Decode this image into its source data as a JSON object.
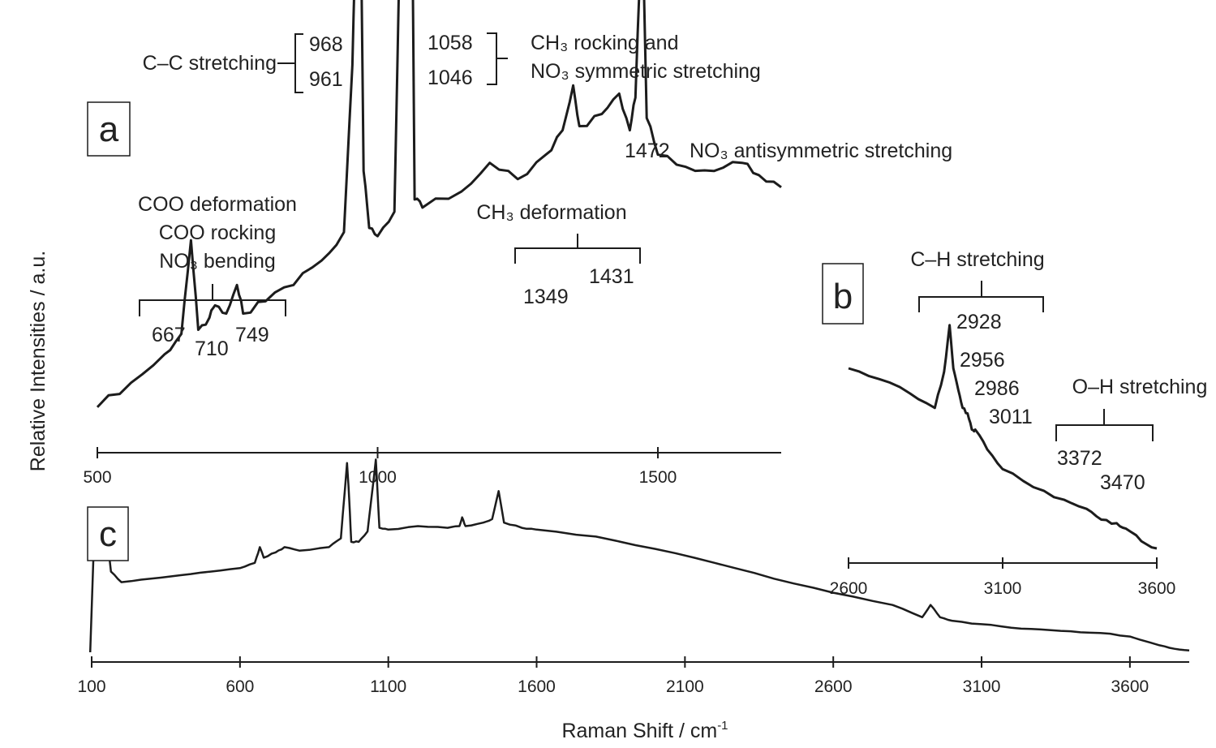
{
  "chart_data": [
    {
      "panel": "a",
      "type": "line",
      "xlim": [
        500,
        1720
      ],
      "xticks": [
        500,
        1000,
        1500
      ],
      "peaks": [
        {
          "x": 667,
          "label": "667"
        },
        {
          "x": 710,
          "label": "710"
        },
        {
          "x": 749,
          "label": "749"
        },
        {
          "x": 961,
          "label": "961"
        },
        {
          "x": 968,
          "label": "968"
        },
        {
          "x": 1046,
          "label": "1046"
        },
        {
          "x": 1058,
          "label": "1058"
        },
        {
          "x": 1349,
          "label": "1349"
        },
        {
          "x": 1431,
          "label": "1431"
        },
        {
          "x": 1472,
          "label": "1472"
        }
      ],
      "annotations": {
        "cc": "C–C stretching",
        "ch3_rock": "CH₃ rocking and",
        "no3_sym": "NO₃ symmetric stretching",
        "no3_anti": "NO₃ antisymmetric stretching",
        "ch3_def": "CH₃ deformation",
        "coo_def": "COO deformation",
        "coo_rock": "COO rocking",
        "no3_bend": "NO₃ bending"
      },
      "series": [
        {
          "x": [
            500,
            560,
            620,
            650,
            667,
            680,
            700,
            710,
            730,
            749,
            760,
            800,
            850,
            900,
            940,
            955,
            961,
            968,
            975,
            985,
            1000,
            1030,
            1046,
            1050,
            1058,
            1066,
            1080,
            1150,
            1200,
            1250,
            1300,
            1330,
            1349,
            1360,
            1400,
            1431,
            1450,
            1460,
            1472,
            1480,
            1500,
            1550,
            1600,
            1650,
            1680,
            1720
          ],
          "y": [
            0.04,
            0.1,
            0.17,
            0.22,
            0.45,
            0.23,
            0.26,
            0.29,
            0.27,
            0.34,
            0.27,
            0.3,
            0.34,
            0.4,
            0.47,
            0.88,
            1.22,
            1.48,
            0.62,
            0.48,
            0.46,
            0.52,
            1.63,
            1.4,
            1.86,
            0.55,
            0.53,
            0.57,
            0.64,
            0.6,
            0.66,
            0.72,
            0.83,
            0.73,
            0.76,
            0.81,
            0.72,
            0.8,
            1.26,
            0.75,
            0.66,
            0.63,
            0.62,
            0.64,
            0.61,
            0.58
          ]
        }
      ]
    },
    {
      "panel": "b",
      "type": "line",
      "xlim": [
        2600,
        3600
      ],
      "xticks": [
        2600,
        3100,
        3600
      ],
      "peaks": [
        {
          "x": 2928,
          "label": "2928"
        },
        {
          "x": 2956,
          "label": "2956"
        },
        {
          "x": 2986,
          "label": "2986"
        },
        {
          "x": 3011,
          "label": "3011"
        },
        {
          "x": 3372,
          "label": "3372"
        },
        {
          "x": 3470,
          "label": "3470"
        }
      ],
      "annotations": {
        "ch": "C–H stretching",
        "oh": "O–H stretching"
      },
      "series": [
        {
          "x": [
            2600,
            2700,
            2800,
            2880,
            2910,
            2928,
            2940,
            2956,
            2970,
            2986,
            3000,
            3011,
            3050,
            3100,
            3200,
            3300,
            3372,
            3420,
            3470,
            3500,
            3550,
            3600
          ],
          "y": [
            1.0,
            0.94,
            0.86,
            0.78,
            0.98,
            1.24,
            1.0,
            0.88,
            0.78,
            0.75,
            0.66,
            0.66,
            0.55,
            0.44,
            0.34,
            0.27,
            0.22,
            0.16,
            0.14,
            0.11,
            0.04,
            0.0
          ]
        }
      ]
    },
    {
      "panel": "c",
      "type": "line",
      "xlim": [
        100,
        3800
      ],
      "xticks": [
        100,
        600,
        1100,
        1600,
        2100,
        2600,
        3100,
        3600
      ],
      "xlabel": "Raman Shift / cm",
      "xlabel_sup": "-1",
      "series": [
        {
          "x": [
            95,
            110,
            130,
            150,
            165,
            200,
            300,
            400,
            500,
            600,
            650,
            667,
            680,
            720,
            750,
            800,
            900,
            940,
            961,
            968,
            975,
            1000,
            1030,
            1046,
            1058,
            1070,
            1100,
            1200,
            1300,
            1340,
            1349,
            1360,
            1420,
            1450,
            1472,
            1490,
            1550,
            1600,
            1800,
            2000,
            2200,
            2400,
            2600,
            2800,
            2900,
            2928,
            2960,
            3000,
            3100,
            3200,
            3300,
            3400,
            3500,
            3600,
            3700,
            3750,
            3800
          ],
          "y": [
            0.0,
            0.74,
            0.63,
            0.69,
            0.46,
            0.4,
            0.42,
            0.44,
            0.46,
            0.48,
            0.51,
            0.6,
            0.54,
            0.57,
            0.6,
            0.58,
            0.6,
            0.65,
            1.08,
            0.88,
            0.63,
            0.63,
            0.69,
            0.92,
            1.1,
            0.71,
            0.7,
            0.72,
            0.71,
            0.72,
            0.77,
            0.72,
            0.74,
            0.76,
            0.92,
            0.74,
            0.71,
            0.7,
            0.66,
            0.59,
            0.51,
            0.42,
            0.34,
            0.27,
            0.2,
            0.27,
            0.2,
            0.18,
            0.16,
            0.14,
            0.13,
            0.12,
            0.11,
            0.09,
            0.04,
            0.02,
            0.01
          ]
        }
      ]
    }
  ],
  "ylabel": "Relative Intensities / a.u.",
  "panel_labels": {
    "a": "a",
    "b": "b",
    "c": "c"
  }
}
